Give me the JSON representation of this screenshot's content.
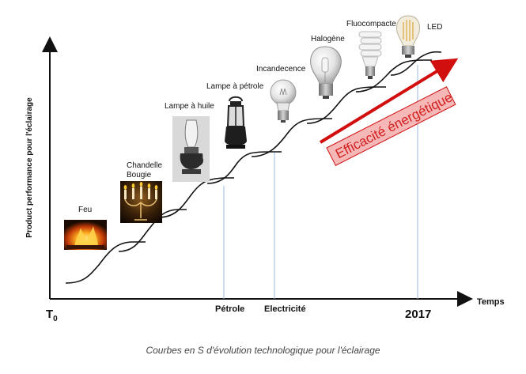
{
  "diagram": {
    "y_axis_label": "Product performance pour l'éclairage",
    "x_axis_label": "Temps",
    "origin_label": "T",
    "origin_subscript": "0",
    "milestones": {
      "petrole": "Pétrole",
      "electricite": "Electricité",
      "year": "2017"
    },
    "technologies": {
      "feu": "Feu",
      "chandelle": "Chandelle",
      "bougie": "Bougie",
      "lampe_huile": "Lampe à huile",
      "lampe_petrole": "Lampe à pétrole",
      "incandecence": "Incandecence",
      "halogene": "Halogène",
      "fluocompacte": "Fluocompacte",
      "led": "LED"
    },
    "banner": "Efficacité énergétique",
    "colors": {
      "arrow": "#d10f0f",
      "banner_fill": "#f6b7b7",
      "curve": "#111111",
      "guide": "#9bb8dc"
    }
  },
  "caption": "Courbes en S d'évolution technologique pour l'éclairage"
}
